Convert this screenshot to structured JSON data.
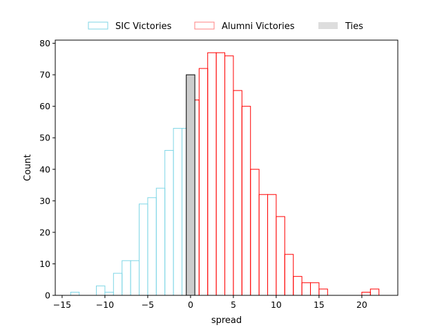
{
  "chart_data": {
    "type": "bar",
    "title": "",
    "xlabel": "spread",
    "ylabel": "Count",
    "xlim": [
      -15.8,
      24.2
    ],
    "ylim": [
      0,
      81
    ],
    "xticks": [
      -15,
      -10,
      -5,
      0,
      5,
      10,
      15,
      20
    ],
    "yticks": [
      0,
      10,
      20,
      30,
      40,
      50,
      60,
      70,
      80
    ],
    "grid": false,
    "legend_position": "top-center",
    "series": [
      {
        "name": "SIC Victories",
        "color": "#7fd6e6",
        "fill": "none",
        "bins": [
          {
            "x0": -14,
            "x1": -13,
            "count": 1
          },
          {
            "x0": -12,
            "x1": -11,
            "count": 0
          },
          {
            "x0": -11,
            "x1": -10,
            "count": 3
          },
          {
            "x0": -10,
            "x1": -9,
            "count": 1
          },
          {
            "x0": -9,
            "x1": -8,
            "count": 7
          },
          {
            "x0": -8,
            "x1": -7,
            "count": 11
          },
          {
            "x0": -7,
            "x1": -6,
            "count": 11
          },
          {
            "x0": -6,
            "x1": -5,
            "count": 29
          },
          {
            "x0": -5,
            "x1": -4,
            "count": 31
          },
          {
            "x0": -4,
            "x1": -3,
            "count": 34
          },
          {
            "x0": -3,
            "x1": -2,
            "count": 46
          },
          {
            "x0": -2,
            "x1": -1,
            "count": 53
          },
          {
            "x0": -1,
            "x1": 0,
            "count": 53
          }
        ]
      },
      {
        "name": "Alumni Victories",
        "color": "#ff0000",
        "fill": "none",
        "bins": [
          {
            "x0": 0,
            "x1": 1,
            "count": 62
          },
          {
            "x0": 1,
            "x1": 2,
            "count": 72
          },
          {
            "x0": 2,
            "x1": 3,
            "count": 77
          },
          {
            "x0": 3,
            "x1": 4,
            "count": 77
          },
          {
            "x0": 4,
            "x1": 5,
            "count": 76
          },
          {
            "x0": 5,
            "x1": 6,
            "count": 65
          },
          {
            "x0": 6,
            "x1": 7,
            "count": 60
          },
          {
            "x0": 7,
            "x1": 8,
            "count": 40
          },
          {
            "x0": 8,
            "x1": 9,
            "count": 32
          },
          {
            "x0": 9,
            "x1": 10,
            "count": 32
          },
          {
            "x0": 10,
            "x1": 11,
            "count": 25
          },
          {
            "x0": 11,
            "x1": 12,
            "count": 13
          },
          {
            "x0": 12,
            "x1": 13,
            "count": 6
          },
          {
            "x0": 13,
            "x1": 14,
            "count": 4
          },
          {
            "x0": 14,
            "x1": 15,
            "count": 4
          },
          {
            "x0": 15,
            "x1": 16,
            "count": 2
          },
          {
            "x0": 20,
            "x1": 21,
            "count": 1
          },
          {
            "x0": 21,
            "x1": 22,
            "count": 2
          }
        ]
      },
      {
        "name": "Ties",
        "color": "#cccccc",
        "edge": "#000000",
        "fill": "#cccccc",
        "bins": [
          {
            "x0": -0.5,
            "x1": 0.5,
            "count": 70
          }
        ]
      }
    ]
  }
}
